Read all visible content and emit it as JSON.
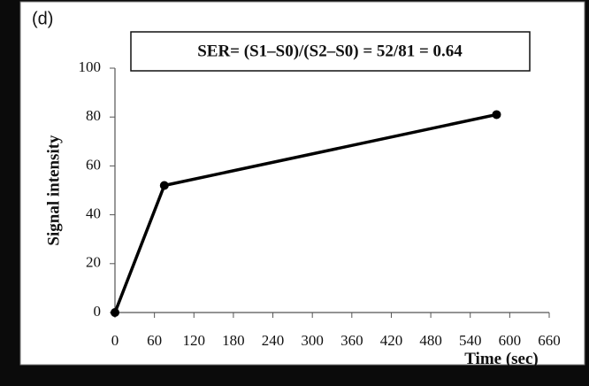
{
  "chart_data": {
    "type": "line",
    "panel_label": "(d)",
    "annotation": "SER= (S1–S0)/(S2–S0) = 52/81 = 0.64",
    "x_label": "Time  (sec)",
    "y_label": "Signal intensity",
    "x": [
      0,
      75,
      580
    ],
    "series": [
      {
        "color": "#000000",
        "values": [
          0,
          52,
          81
        ]
      }
    ],
    "xlim": [
      0,
      660
    ],
    "xticks": [
      0,
      60,
      120,
      180,
      240,
      300,
      360,
      420,
      480,
      540,
      600,
      660
    ],
    "ylim": [
      0,
      100
    ],
    "yticks": [
      0,
      20,
      40,
      60,
      80,
      100
    ],
    "grid": false
  }
}
